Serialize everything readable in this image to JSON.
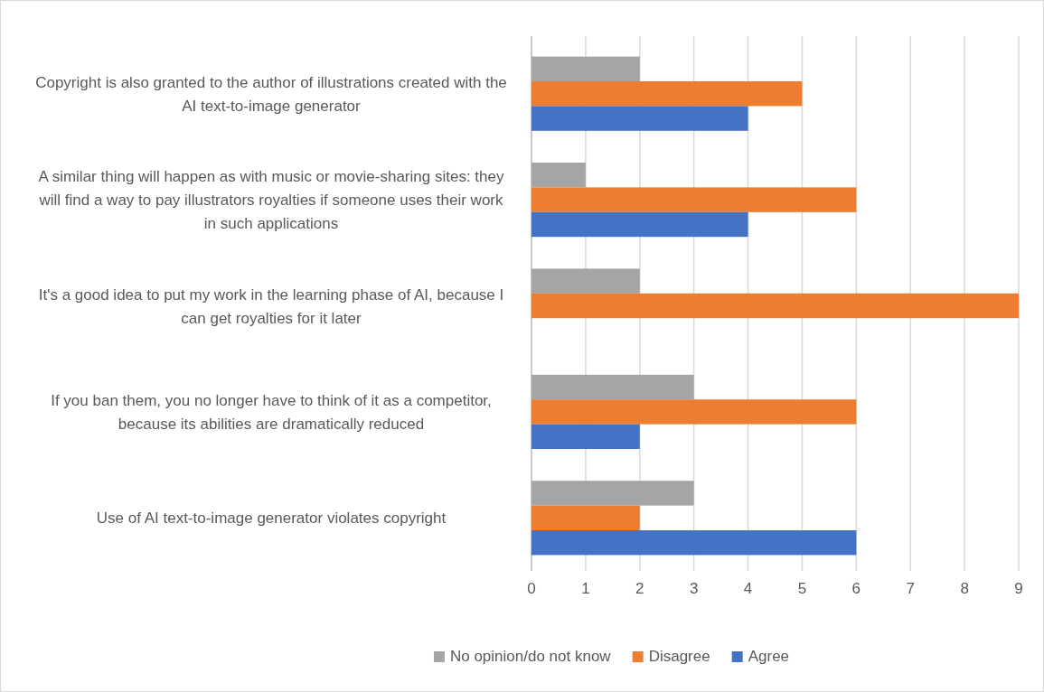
{
  "chart_data": {
    "type": "bar",
    "orientation": "horizontal",
    "categories": [
      "Copyright is also granted to the author of illustrations created with the AI text-to-image generator",
      "A similar thing will happen as with music or movie-sharing sites: they will find a way to pay illustrators royalties if someone uses their work in such applications",
      "It's a good idea to put my work in the learning phase of AI, because I can get royalties for it later",
      "If you ban them, you no longer have to think of it as a competitor, because its abilities are dramatically reduced",
      "Use of AI text-to-image generator violates copyright"
    ],
    "series": [
      {
        "name": "No opinion/do not know",
        "color": "#a5a5a5",
        "values": [
          2,
          1,
          2,
          3,
          3
        ]
      },
      {
        "name": "Disagree",
        "color": "#ed7d31",
        "values": [
          5,
          6,
          9,
          6,
          2
        ]
      },
      {
        "name": "Agree",
        "color": "#4472c4",
        "values": [
          4,
          4,
          0,
          2,
          6
        ]
      }
    ],
    "xlim": [
      0,
      9
    ],
    "xticks": [
      0,
      1,
      2,
      3,
      4,
      5,
      6,
      7,
      8,
      9
    ],
    "grid": "x",
    "legend": "bottom"
  }
}
